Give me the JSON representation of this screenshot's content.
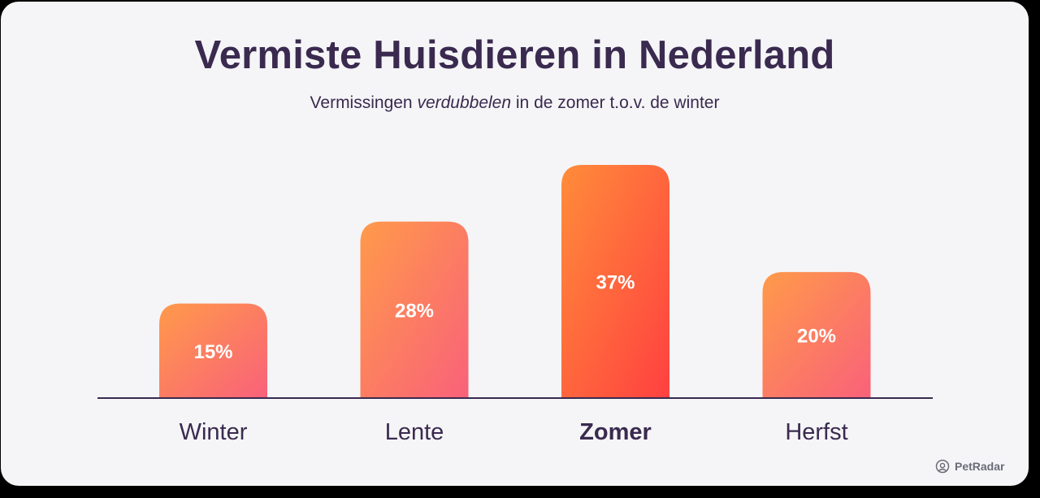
{
  "header": {
    "title": "Vermiste Huisdieren in Nederland",
    "subtitle_before": "Vermissingen",
    "subtitle_emphasis": "verdubbelen",
    "subtitle_after": "in de zomer t.o.v. de winter"
  },
  "chart_data": {
    "type": "bar",
    "categories": [
      "Winter",
      "Lente",
      "Zomer",
      "Herfst"
    ],
    "values": [
      15,
      28,
      37,
      20
    ],
    "value_labels": [
      "15%",
      "28%",
      "37%",
      "20%"
    ],
    "highlight": "Zomer",
    "title": "Vermiste Huisdieren in Nederland",
    "xlabel": "",
    "ylabel": "",
    "ylim": [
      0,
      37
    ],
    "grid": false,
    "colors": {
      "bar_start": "#ff9a4a",
      "bar_end": "#f9617a",
      "highlight_start": "#ff8c3a",
      "highlight_end": "#ff4040",
      "label": "#3a2a4f",
      "baseline": "#3a2a4f"
    }
  },
  "branding": {
    "logo_text": "PetRadar",
    "logo_icon": "pet-radar-icon"
  }
}
